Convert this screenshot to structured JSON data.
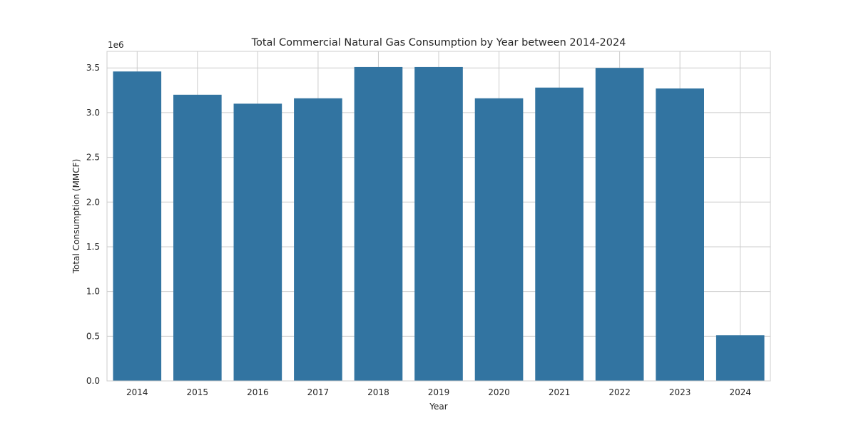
{
  "chart_data": {
    "type": "bar",
    "title": "Total Commercial Natural Gas Consumption by Year between 2014-2024",
    "xlabel": "Year",
    "ylabel": "Total Consumption (MMCF)",
    "y_offset_label": "1e6",
    "categories": [
      "2014",
      "2015",
      "2016",
      "2017",
      "2018",
      "2019",
      "2020",
      "2021",
      "2022",
      "2023",
      "2024"
    ],
    "values": [
      3460000,
      3200000,
      3100000,
      3160000,
      3510000,
      3510000,
      3160000,
      3280000,
      3500000,
      3270000,
      510000
    ],
    "yticks": [
      0,
      0.5,
      1.0,
      1.5,
      2.0,
      2.5,
      3.0,
      3.5
    ],
    "ytick_labels": [
      "0.0",
      "0.5",
      "1.0",
      "1.5",
      "2.0",
      "2.5",
      "3.0",
      "3.5"
    ],
    "ytick_scale": 1000000,
    "ylim": [
      0,
      3685000
    ],
    "grid": true,
    "colors": {
      "bar": "#3274a1",
      "grid": "#cccccc",
      "spine": "#cccccc",
      "text": "#262626"
    }
  }
}
